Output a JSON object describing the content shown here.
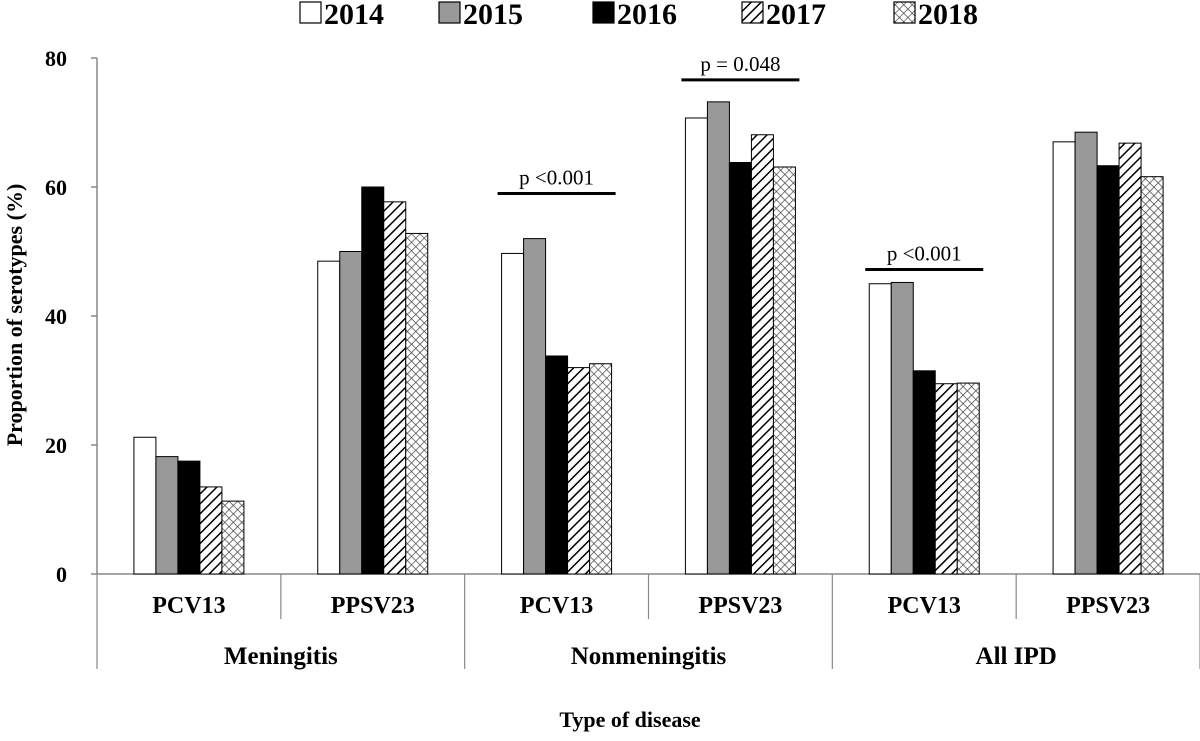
{
  "chart_data": {
    "type": "bar",
    "title": "",
    "xlabel": "Type of disease",
    "ylabel": "Proportion of serotypes (%)",
    "ylim": [
      0,
      80
    ],
    "yticks": [
      0,
      20,
      40,
      60,
      80
    ],
    "grid": false,
    "legend_position": "top",
    "categories": [
      {
        "group": "Meningitis",
        "label": "PCV13"
      },
      {
        "group": "Meningitis",
        "label": "PPSV23"
      },
      {
        "group": "Nonmeningitis",
        "label": "PCV13"
      },
      {
        "group": "Nonmeningitis",
        "label": "PPSV23"
      },
      {
        "group": "All IPD",
        "label": "PCV13"
      },
      {
        "group": "All IPD",
        "label": "PPSV23"
      }
    ],
    "groups": [
      "Meningitis",
      "Nonmeningitis",
      "All IPD"
    ],
    "series": [
      {
        "name": "2014",
        "fill": "white",
        "values": [
          21.2,
          48.5,
          49.7,
          70.7,
          45.0,
          67.0
        ]
      },
      {
        "name": "2015",
        "fill": "gray",
        "values": [
          18.2,
          50.0,
          52.0,
          73.2,
          45.2,
          68.5
        ]
      },
      {
        "name": "2016",
        "fill": "black",
        "values": [
          17.5,
          60.0,
          33.8,
          63.8,
          31.5,
          63.3
        ]
      },
      {
        "name": "2017",
        "fill": "diagonal-hatch",
        "values": [
          13.5,
          57.7,
          32.0,
          68.1,
          29.5,
          66.8
        ]
      },
      {
        "name": "2018",
        "fill": "crosshatch",
        "values": [
          11.3,
          52.8,
          32.6,
          63.1,
          29.6,
          61.6
        ]
      }
    ],
    "annotations": [
      {
        "text": "p <0.001",
        "category_index": 2,
        "y": 59
      },
      {
        "text": "p = 0.048",
        "category_index": 3,
        "y": 76.6
      },
      {
        "text": "p <0.001",
        "category_index": 4,
        "y": 47.2
      }
    ]
  },
  "colors": {
    "white": "#ffffff",
    "gray": "#999999",
    "black": "#000000",
    "axis": "#888888"
  }
}
